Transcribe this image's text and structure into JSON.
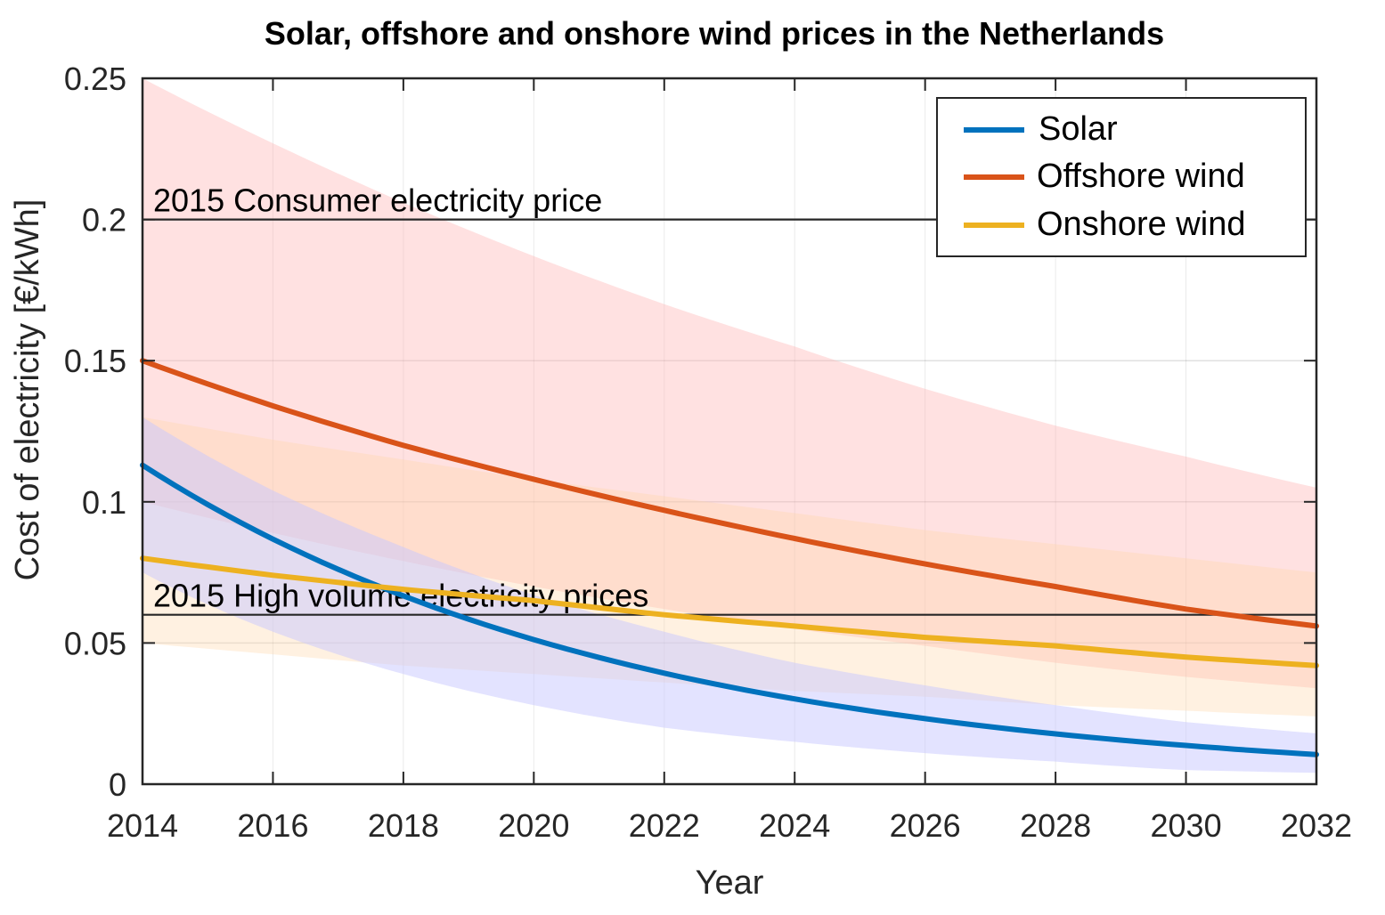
{
  "chart_data": {
    "type": "line",
    "title": "Solar, offshore and onshore wind prices in the Netherlands",
    "xlabel": "Year",
    "ylabel": "Cost of electricity [€/kWh]",
    "xlim": [
      2014,
      2032
    ],
    "ylim": [
      0,
      0.25
    ],
    "grid": true,
    "legend_position": "top-right",
    "x": [
      2014,
      2016,
      2018,
      2020,
      2022,
      2024,
      2026,
      2028,
      2030,
      2032
    ],
    "xticks": [
      "2014",
      "2016",
      "2018",
      "2020",
      "2022",
      "2024",
      "2026",
      "2028",
      "2030",
      "2032"
    ],
    "yticks": [
      {
        "value": 0,
        "label": "0"
      },
      {
        "value": 0.05,
        "label": "0.05"
      },
      {
        "value": 0.1,
        "label": "0.1"
      },
      {
        "value": 0.15,
        "label": "0.15"
      },
      {
        "value": 0.2,
        "label": "0.2"
      },
      {
        "value": 0.25,
        "label": "0.25"
      }
    ],
    "series": [
      {
        "name": "Solar",
        "color": "#0072BD",
        "band_color": "#c8c8ff",
        "values": [
          0.113,
          0.0868,
          0.0667,
          0.0512,
          0.0393,
          0.0302,
          0.0232,
          0.0178,
          0.0137,
          0.0105
        ],
        "upper": [
          0.13,
          0.104,
          0.084,
          0.067,
          0.054,
          0.043,
          0.035,
          0.028,
          0.022,
          0.018
        ],
        "lower": [
          0.075,
          0.054,
          0.039,
          0.028,
          0.02,
          0.015,
          0.011,
          0.008,
          0.005,
          0.004
        ]
      },
      {
        "name": "Offshore wind",
        "color": "#D95319",
        "band_color": "#ffb4b4",
        "values": [
          0.15,
          0.134,
          0.12,
          0.108,
          0.097,
          0.087,
          0.078,
          0.07,
          0.062,
          0.056
        ],
        "upper": [
          0.25,
          0.227,
          0.206,
          0.187,
          0.17,
          0.155,
          0.14,
          0.127,
          0.116,
          0.105
        ],
        "lower": [
          0.1,
          0.089,
          0.079,
          0.07,
          0.062,
          0.055,
          0.049,
          0.043,
          0.038,
          0.034
        ]
      },
      {
        "name": "Onshore wind",
        "color": "#EDB120",
        "band_color": "#ffd8a8",
        "values": [
          0.08,
          0.074,
          0.069,
          0.065,
          0.06,
          0.056,
          0.052,
          0.049,
          0.045,
          0.042
        ],
        "upper": [
          0.13,
          0.122,
          0.115,
          0.108,
          0.102,
          0.096,
          0.09,
          0.085,
          0.08,
          0.075
        ],
        "lower": [
          0.05,
          0.046,
          0.042,
          0.039,
          0.036,
          0.033,
          0.031,
          0.028,
          0.026,
          0.024
        ]
      }
    ],
    "reference_lines": [
      {
        "label": "2015 Consumer electricity price",
        "value": 0.2
      },
      {
        "label": "2015 High volume electricity prices",
        "value": 0.06
      }
    ]
  }
}
